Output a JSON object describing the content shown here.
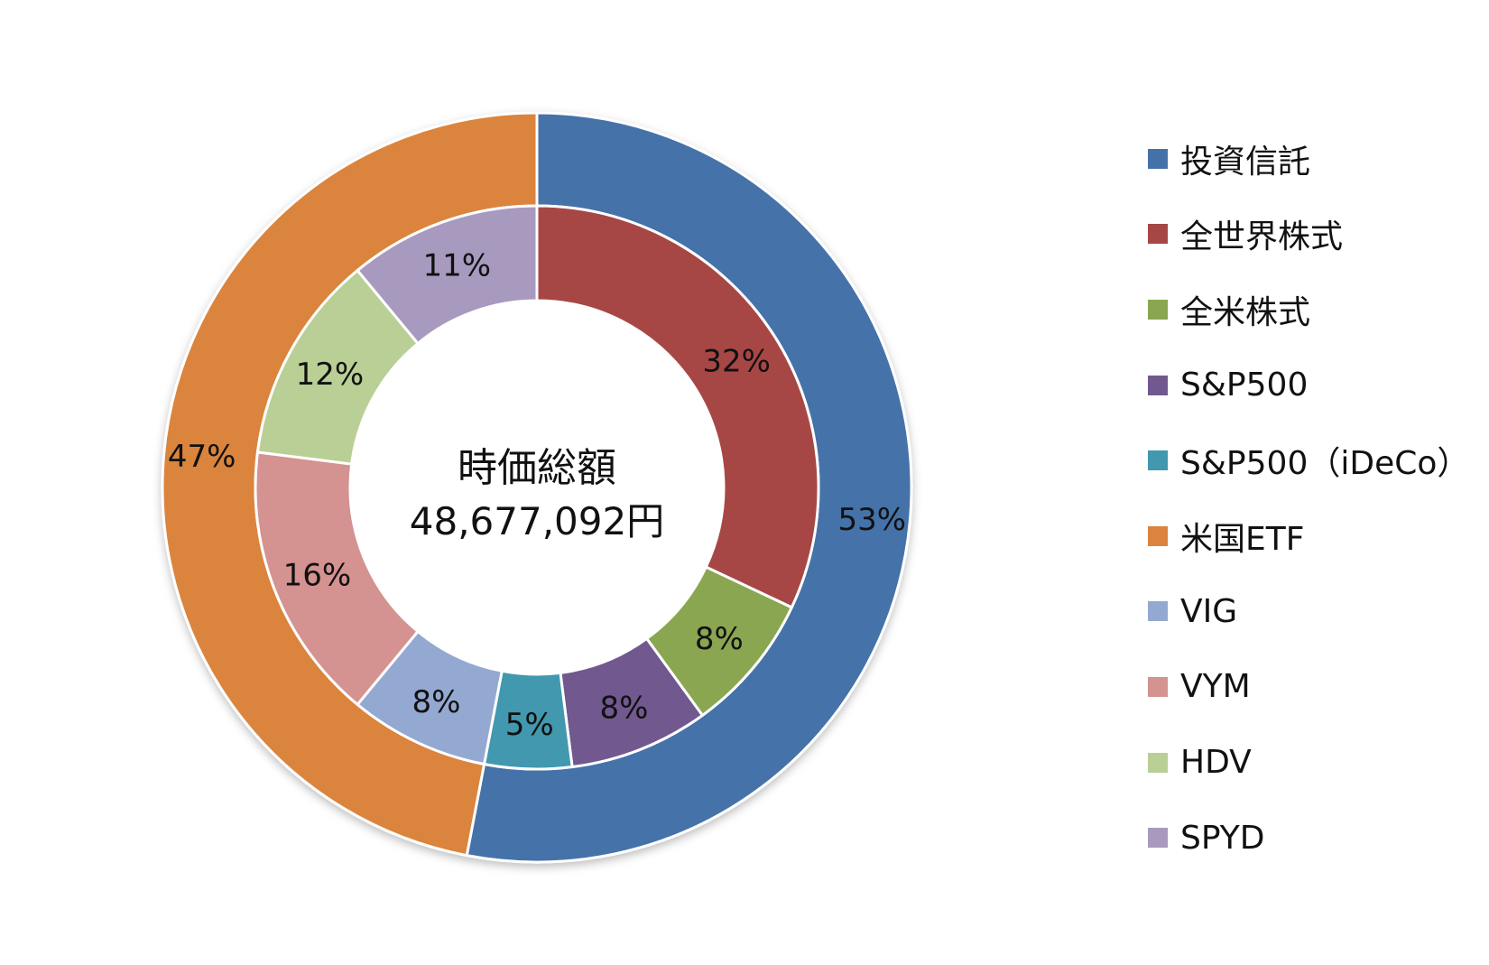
{
  "chart_data": {
    "type": "donut",
    "center_text": {
      "title": "時価総額",
      "value": "48,677,092円"
    },
    "outer_ring": [
      {
        "name": "投資信託",
        "value": 53,
        "label": "53%",
        "color": "#4472A8"
      },
      {
        "name": "米国ETF",
        "value": 47,
        "label": "47%",
        "color": "#DB843D"
      }
    ],
    "inner_ring": [
      {
        "name": "全世界株式",
        "value": 32,
        "label": "32%",
        "color": "#A74745"
      },
      {
        "name": "全米株式",
        "value": 8,
        "label": "8%",
        "color": "#8AA651"
      },
      {
        "name": "S&P500",
        "value": 8,
        "label": "8%",
        "color": "#71588F"
      },
      {
        "name": "S&P500（iDeCo）",
        "value": 5,
        "label": "5%",
        "color": "#4198AF"
      },
      {
        "name": "VIG",
        "value": 8,
        "label": "8%",
        "color": "#94A9D1"
      },
      {
        "name": "VYM",
        "value": 16,
        "label": "16%",
        "color": "#D49291"
      },
      {
        "name": "HDV",
        "value": 12,
        "label": "12%",
        "color": "#B9CF95"
      },
      {
        "name": "SPYD",
        "value": 11,
        "label": "11%",
        "color": "#A89ABF"
      }
    ],
    "legend": [
      {
        "label": "投資信託",
        "color": "#4472A8"
      },
      {
        "label": "全世界株式",
        "color": "#A74745"
      },
      {
        "label": "全米株式",
        "color": "#8AA651"
      },
      {
        "label": "S&P500",
        "color": "#71588F"
      },
      {
        "label": "S&P500（iDeCo）",
        "color": "#4198AF"
      },
      {
        "label": "米国ETF",
        "color": "#DB843D"
      },
      {
        "label": "VIG",
        "color": "#94A9D1"
      },
      {
        "label": "VYM",
        "color": "#D49291"
      },
      {
        "label": "HDV",
        "color": "#B9CF95"
      },
      {
        "label": "SPYD",
        "color": "#A89ABF"
      }
    ],
    "legend_position": "right"
  }
}
